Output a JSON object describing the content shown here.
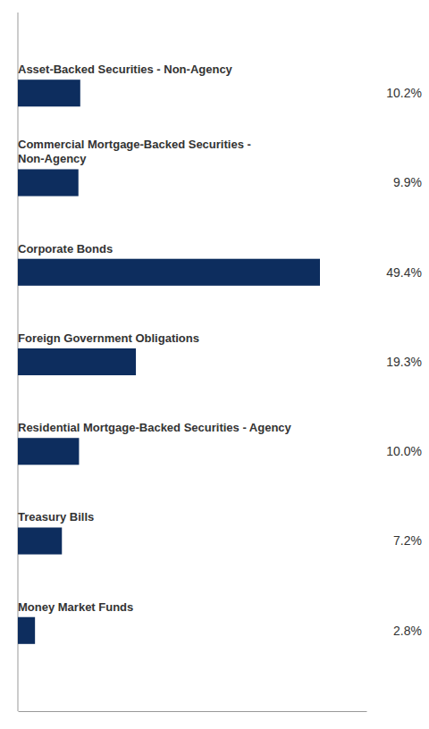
{
  "chart_data": {
    "type": "bar",
    "orientation": "horizontal",
    "categories": [
      "Asset-Backed Securities - Non-Agency",
      "Commercial Mortgage-Backed Securities -\nNon-Agency",
      "Corporate Bonds",
      "Foreign Government Obligations",
      "Residential Mortgage-Backed Securities - Agency",
      "Treasury Bills",
      "Money Market Funds"
    ],
    "values": [
      10.2,
      9.9,
      49.4,
      19.3,
      10.0,
      7.2,
      2.8
    ],
    "value_labels": [
      "10.2%",
      "9.9%",
      "49.4%",
      "19.3%",
      "10.0%",
      "7.2%",
      "2.8%"
    ],
    "color": "#0d2d5e",
    "xlim": [
      0,
      57
    ],
    "data_labels": true,
    "tick_labels": false,
    "grid": false
  }
}
